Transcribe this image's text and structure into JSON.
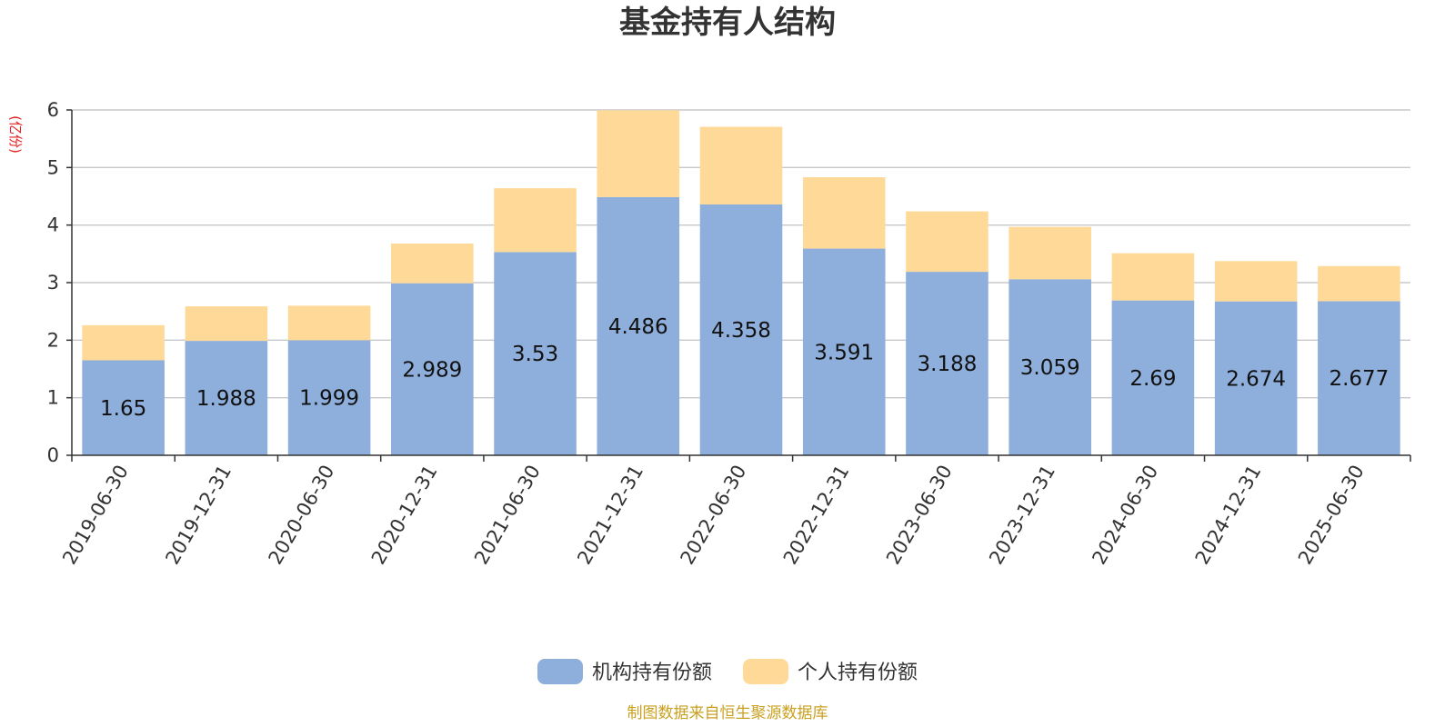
{
  "chart_data": {
    "type": "bar",
    "stacked": true,
    "title": "基金持有人结构",
    "unit_label": "(亿份)",
    "categories": [
      "2019-06-30",
      "2019-12-31",
      "2020-06-30",
      "2020-12-31",
      "2021-06-30",
      "2021-12-31",
      "2022-06-30",
      "2022-12-31",
      "2023-06-30",
      "2023-12-31",
      "2024-06-30",
      "2024-12-31",
      "2025-06-30"
    ],
    "series": [
      {
        "name": "机构持有份额",
        "color": "#8eaedb",
        "values": [
          1.65,
          1.988,
          1.999,
          2.989,
          3.53,
          4.486,
          4.358,
          3.591,
          3.188,
          3.059,
          2.69,
          2.674,
          2.677
        ],
        "data_labels": [
          "1.65",
          "1.988",
          "1.999",
          "2.989",
          "3.53",
          "4.486",
          "4.358",
          "3.591",
          "3.188",
          "3.059",
          "2.69",
          "2.674",
          "2.677"
        ]
      },
      {
        "name": "个人持有份额",
        "color": "#ffd998",
        "values": [
          0.61,
          0.6,
          0.6,
          0.69,
          1.11,
          1.51,
          1.35,
          1.24,
          1.05,
          0.91,
          0.82,
          0.7,
          0.61
        ]
      }
    ],
    "yticks": [
      "0",
      "1",
      "2",
      "3",
      "4",
      "5",
      "6"
    ],
    "ylim": [
      0,
      6
    ],
    "grid": true,
    "legend_position": "bottom",
    "source": "制图数据来自恒生聚源数据库"
  }
}
